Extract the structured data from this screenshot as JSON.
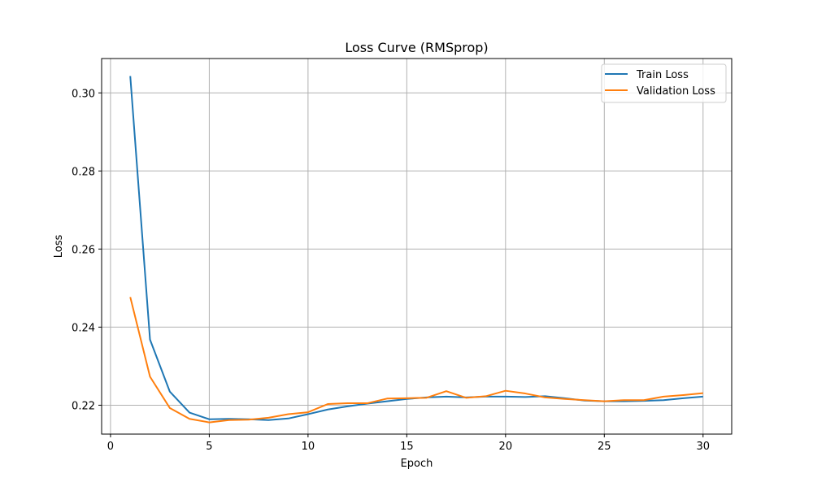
{
  "chart_data": {
    "type": "line",
    "title": "Loss Curve (RMSprop)",
    "xlabel": "Epoch",
    "ylabel": "Loss",
    "xlim": [
      -0.45,
      31.45
    ],
    "ylim": [
      0.2126,
      0.3088
    ],
    "xticks": [
      0,
      5,
      10,
      15,
      20,
      25,
      30
    ],
    "xtick_labels": [
      "0",
      "5",
      "10",
      "15",
      "20",
      "25",
      "30"
    ],
    "yticks": [
      0.22,
      0.24,
      0.26,
      0.28,
      0.3
    ],
    "ytick_labels": [
      "0.22",
      "0.24",
      "0.26",
      "0.28",
      "0.30"
    ],
    "grid": true,
    "legend_position": "top-right",
    "x": [
      1,
      2,
      3,
      4,
      5,
      6,
      7,
      8,
      9,
      10,
      11,
      12,
      13,
      14,
      15,
      16,
      17,
      18,
      19,
      20,
      21,
      22,
      23,
      24,
      25,
      26,
      27,
      28,
      29,
      30
    ],
    "series": [
      {
        "name": "Train Loss",
        "color": "#1f77b4",
        "values": [
          0.3043,
          0.2368,
          0.2235,
          0.2181,
          0.2164,
          0.2165,
          0.2164,
          0.2162,
          0.2166,
          0.2177,
          0.2189,
          0.2197,
          0.2204,
          0.221,
          0.2216,
          0.222,
          0.2222,
          0.222,
          0.2222,
          0.2222,
          0.2221,
          0.2223,
          0.2218,
          0.2212,
          0.221,
          0.221,
          0.2211,
          0.2213,
          0.2218,
          0.2222
        ]
      },
      {
        "name": "Validation Loss",
        "color": "#ff7f0e",
        "values": [
          0.2477,
          0.2273,
          0.2193,
          0.2165,
          0.2156,
          0.2162,
          0.2163,
          0.2168,
          0.2177,
          0.2182,
          0.2203,
          0.2205,
          0.2205,
          0.2217,
          0.2218,
          0.2219,
          0.2236,
          0.2219,
          0.2223,
          0.2237,
          0.223,
          0.222,
          0.2216,
          0.2213,
          0.221,
          0.2213,
          0.2213,
          0.2222,
          0.2226,
          0.2231
        ]
      }
    ]
  }
}
